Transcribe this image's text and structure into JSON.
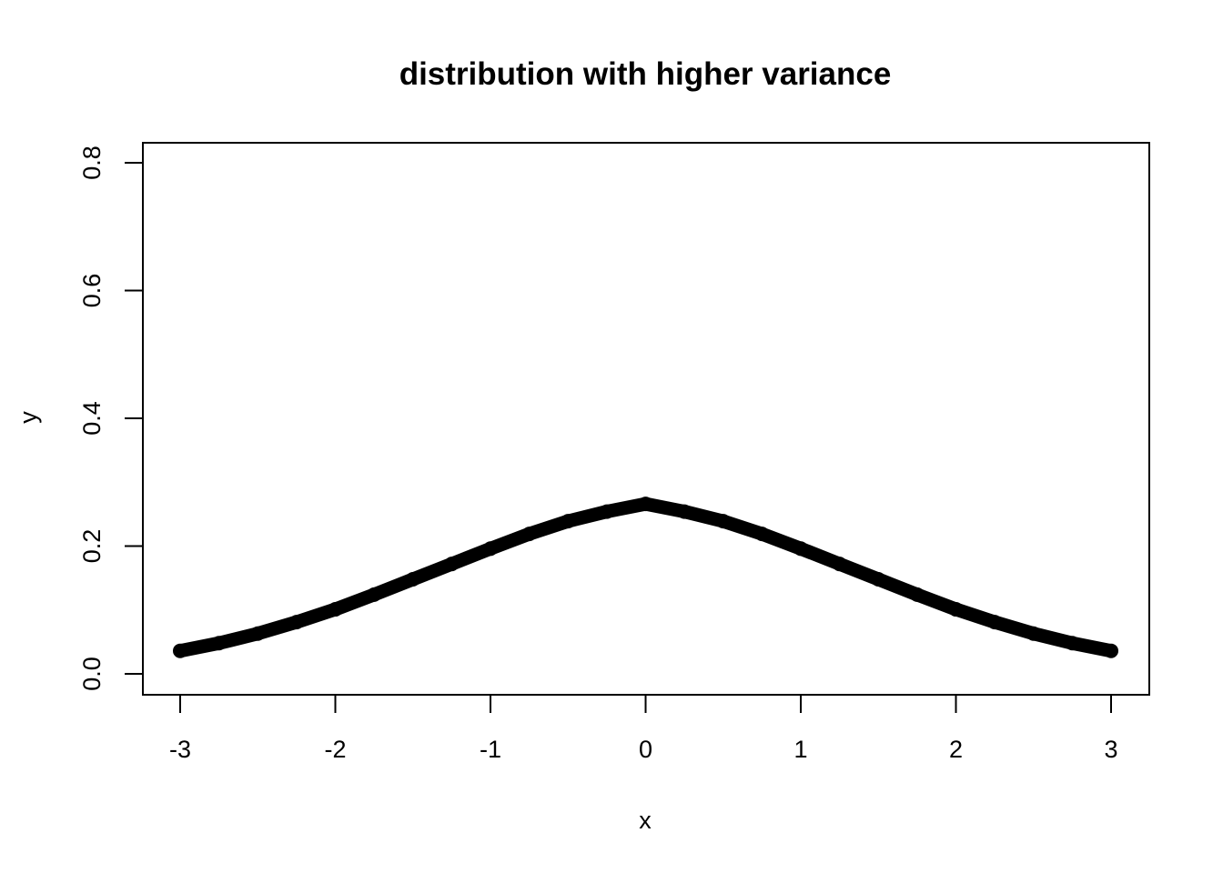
{
  "chart_data": {
    "type": "scatter",
    "title": "distribution with higher variance",
    "xlabel": "x",
    "ylabel": "y",
    "xlim": [
      -3,
      3
    ],
    "ylim": [
      0,
      0.8
    ],
    "xticks": [
      "-3",
      "-2",
      "-1",
      "0",
      "1",
      "2",
      "3"
    ],
    "yticks": [
      "0.0",
      "0.2",
      "0.4",
      "0.6",
      "0.8"
    ],
    "grid": false,
    "legend": "none",
    "point_color": "#000000",
    "series": [
      {
        "x": [
          -3,
          -2.75,
          -2.5,
          -2.25,
          -2,
          -1.75,
          -1.5,
          -1.25,
          -1,
          -0.75,
          -0.5,
          -0.25,
          0,
          0.25,
          0.5,
          0.75,
          1,
          1.25,
          1.5,
          1.75,
          2,
          2.25,
          2.5,
          2.75,
          3
        ],
        "y": [
          0.036,
          0.048,
          0.063,
          0.081,
          0.101,
          0.124,
          0.148,
          0.172,
          0.196,
          0.219,
          0.239,
          0.254,
          0.266,
          0.254,
          0.239,
          0.219,
          0.196,
          0.172,
          0.148,
          0.124,
          0.101,
          0.081,
          0.063,
          0.048,
          0.036
        ]
      }
    ]
  }
}
